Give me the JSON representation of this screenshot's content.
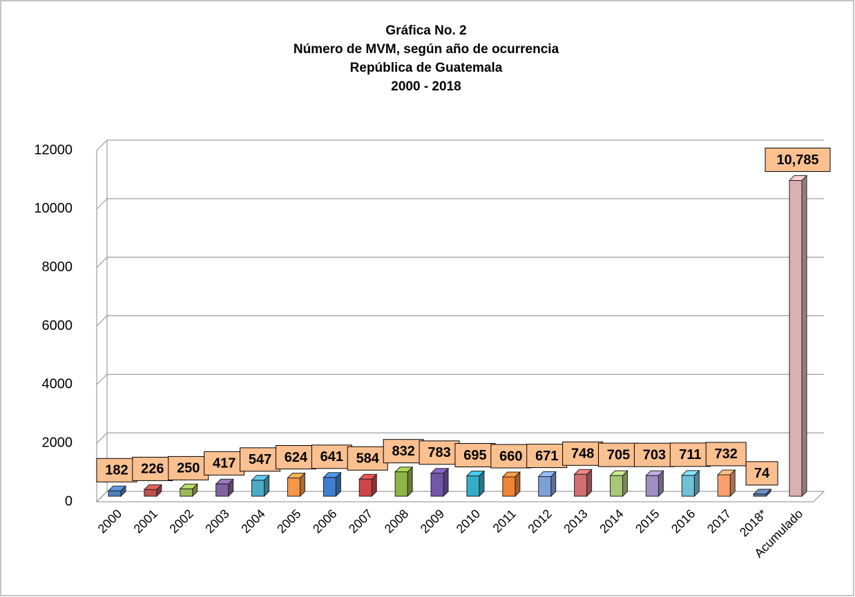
{
  "chart_data": {
    "type": "bar3d",
    "title": [
      "Gráfica No. 2",
      "Número de MVM, según año de ocurrencia",
      "República de Guatemala",
      "2000 - 2018"
    ],
    "categories": [
      "2000",
      "2001",
      "2002",
      "2003",
      "2004",
      "2005",
      "2006",
      "2007",
      "2008",
      "2009",
      "2010",
      "2011",
      "2012",
      "2013",
      "2014",
      "2015",
      "2016",
      "2017",
      "2018*",
      "Acumulado"
    ],
    "values": [
      182,
      226,
      250,
      417,
      547,
      624,
      641,
      584,
      832,
      783,
      695,
      660,
      671,
      748,
      705,
      703,
      711,
      732,
      74,
      10785
    ],
    "value_labels": [
      "182",
      "226",
      "250",
      "417",
      "547",
      "624",
      "641",
      "584",
      "832",
      "783",
      "695",
      "660",
      "671",
      "748",
      "705",
      "703",
      "711",
      "732",
      "74",
      "10,785"
    ],
    "colors": [
      "#4f81bd",
      "#c0504d",
      "#9bbb59",
      "#8064a2",
      "#4bacc6",
      "#f79646",
      "#3f7fd0",
      "#d04545",
      "#8fb545",
      "#7356a8",
      "#35acc8",
      "#f08535",
      "#7f9fd8",
      "#d07070",
      "#a8c878",
      "#a090c0",
      "#70c0d8",
      "#f8a070",
      "#5a78a8",
      "#dbb0b0"
    ],
    "ylim": [
      0,
      12000
    ],
    "yticks": [
      0,
      2000,
      4000,
      6000,
      8000,
      10000,
      12000
    ],
    "grid": true
  }
}
